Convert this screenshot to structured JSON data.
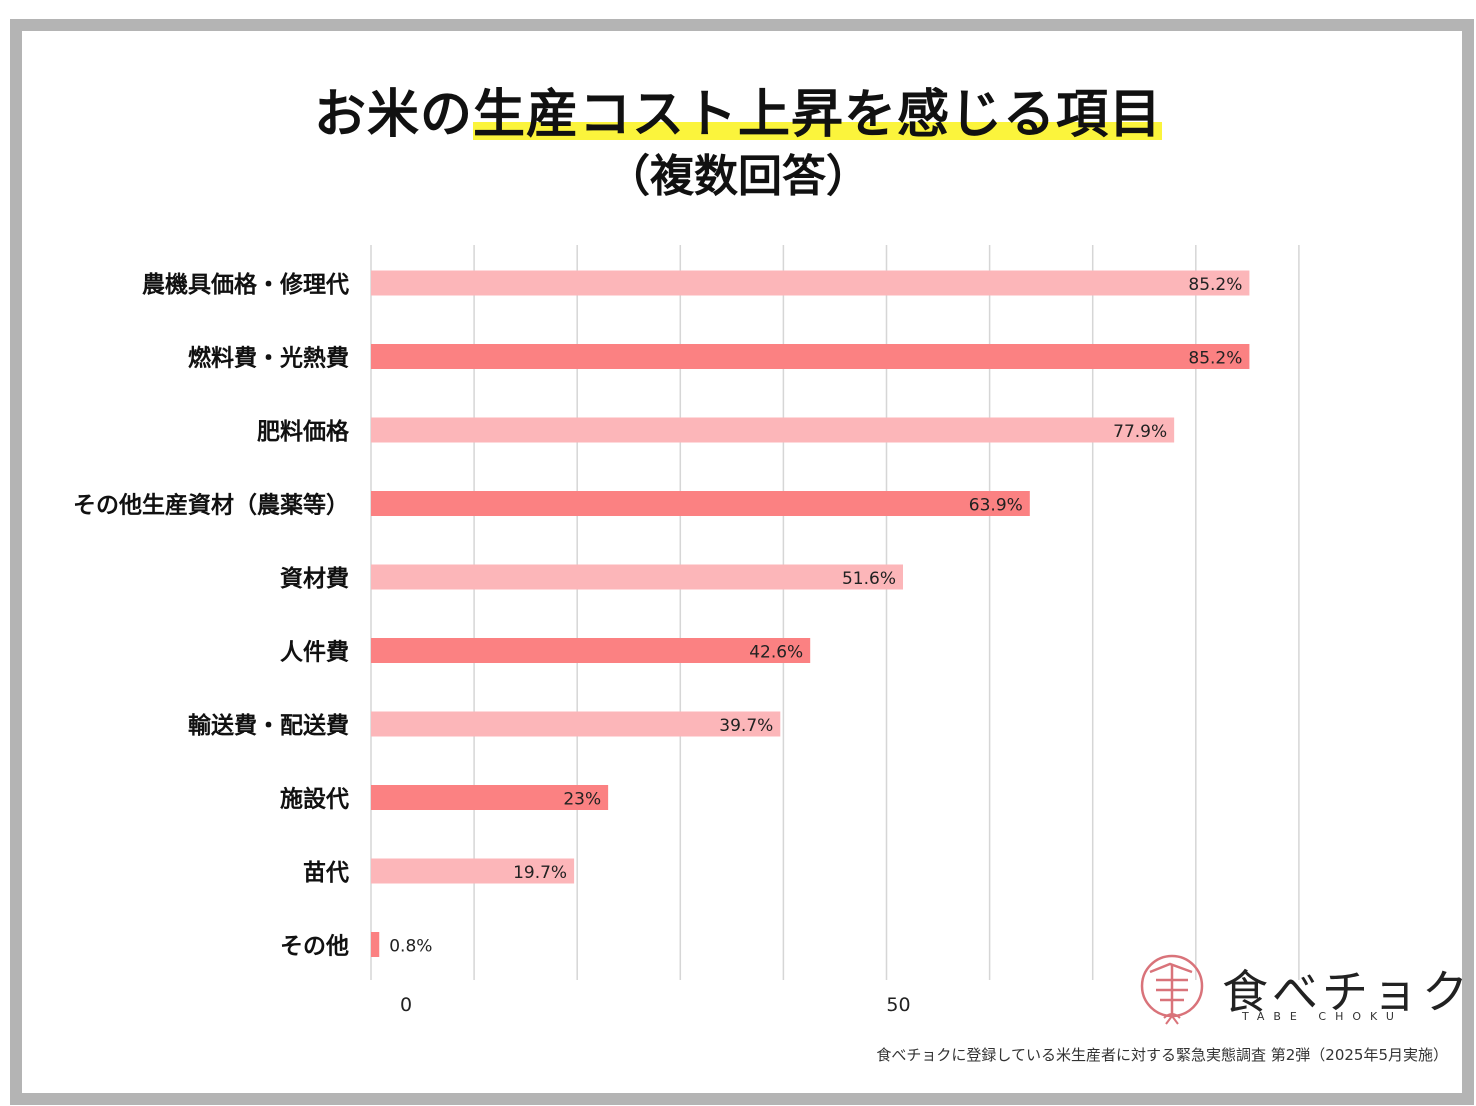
{
  "colors": {
    "bar_light": "#fcb6b9",
    "bar_dark": "#fb8182",
    "highlight": "#fbf43c",
    "frame": "#b4b4b4",
    "grid": "#d6d6d6"
  },
  "footnote": "食べチョクに登録している米生産者に対する緊急実態調査 第2弾（2025年5月実施）",
  "logo": {
    "text": "食べチョク",
    "sub": "TABE CHOKU",
    "icon": "tabechoku-seal-icon"
  },
  "chart_data": {
    "type": "bar",
    "orientation": "horizontal",
    "title_plain": "お米の",
    "title_highlight": "生産コスト上昇を感じる項目",
    "subtitle": "（複数回答）",
    "categories": [
      "農機具価格・修理代",
      "燃料費・光熱費",
      "肥料価格",
      "その他生産資材（農薬等）",
      "資材費",
      "人件費",
      "輸送費・配送費",
      "施設代",
      "苗代",
      "その他"
    ],
    "values": [
      85.2,
      85.2,
      77.9,
      63.9,
      51.6,
      42.6,
      39.7,
      23,
      19.7,
      0.8
    ],
    "data_labels": [
      "85.2%",
      "85.2%",
      "77.9%",
      "63.9%",
      "51.6%",
      "42.6%",
      "39.7%",
      "23%",
      "19.7%",
      "0.8%"
    ],
    "xlim": [
      0,
      90
    ],
    "xticks": [
      0,
      50
    ],
    "x_gridlines": [
      0,
      10,
      20,
      30,
      40,
      50,
      60,
      70,
      80,
      90
    ],
    "grid": true,
    "legend": "none"
  }
}
